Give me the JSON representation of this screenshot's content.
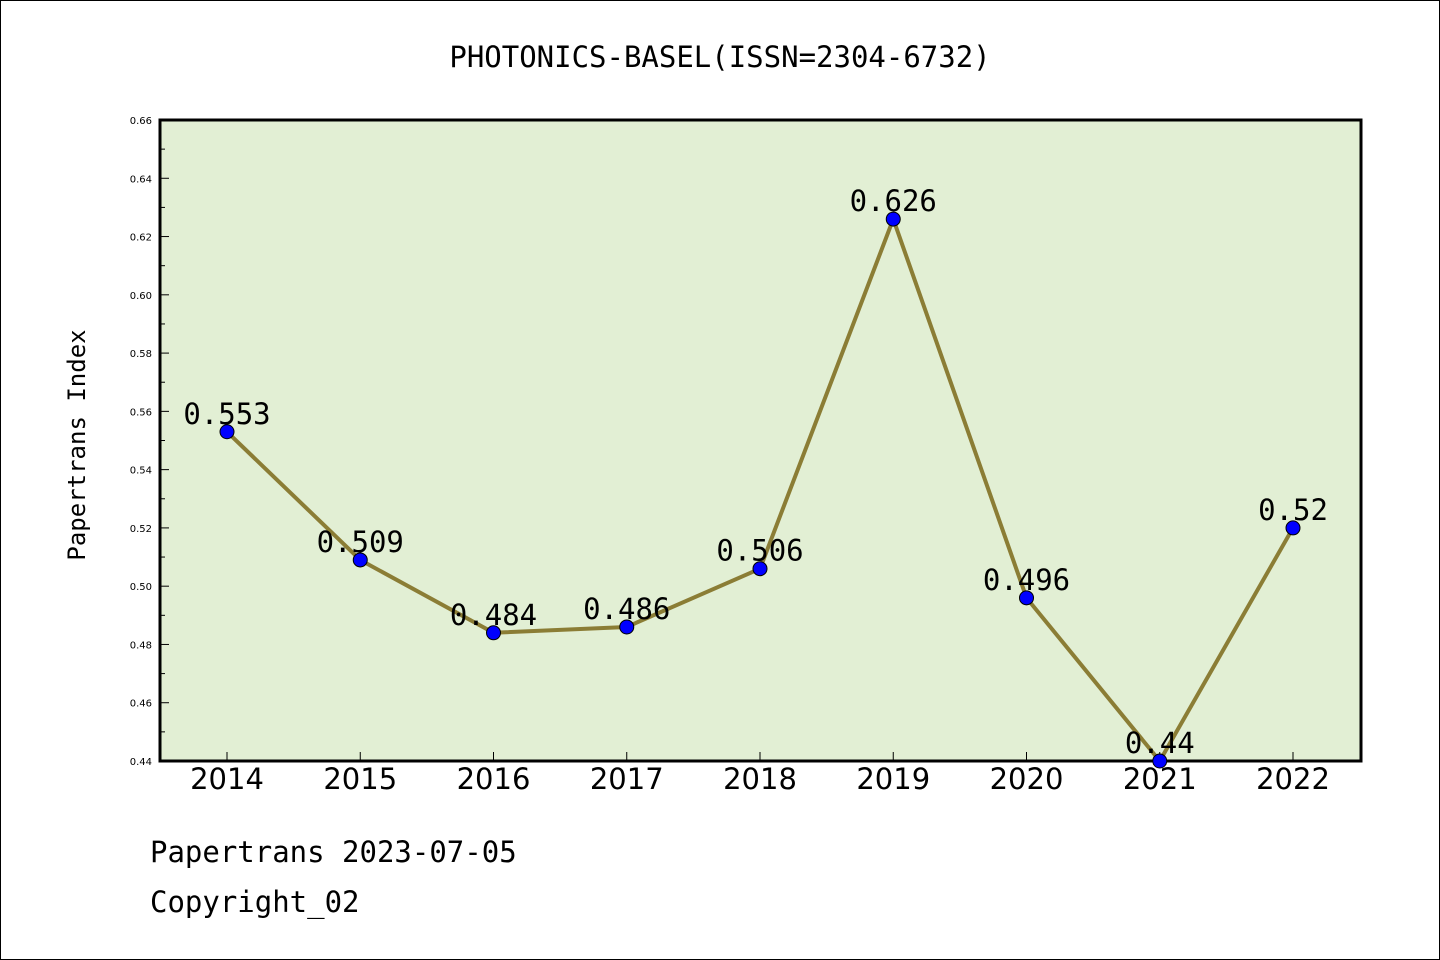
{
  "footer": {
    "date_text": "Papertrans 2023-07-05",
    "copyright_text": "Copyright_02"
  },
  "colors": {
    "plot_background": "#e2efd4",
    "line": "#8b7d35",
    "marker": "#0000ff"
  },
  "chart_data": {
    "type": "line",
    "title": "PHOTONICS-BASEL(ISSN=2304-6732)",
    "xlabel": "",
    "ylabel": "Papertrans Index",
    "categories": [
      "2014",
      "2015",
      "2016",
      "2017",
      "2018",
      "2019",
      "2020",
      "2021",
      "2022"
    ],
    "series": [
      {
        "values": [
          0.553,
          0.509,
          0.484,
          0.486,
          0.506,
          0.626,
          0.496,
          0.44,
          0.52
        ],
        "labels": [
          "0.553",
          "0.509",
          "0.484",
          "0.486",
          "0.506",
          "0.626",
          "0.496",
          "0.44",
          "0.52"
        ]
      }
    ],
    "ylim": [
      0.44,
      0.66
    ],
    "yticks": [
      0.44,
      0.46,
      0.48,
      0.5,
      0.52,
      0.54,
      0.56,
      0.58,
      0.6,
      0.62,
      0.64,
      0.66
    ],
    "ytick_labels": [
      "0.44",
      "0.46",
      "0.48",
      "0.50",
      "0.52",
      "0.54",
      "0.56",
      "0.58",
      "0.60",
      "0.62",
      "0.64",
      "0.66"
    ],
    "grid": false,
    "legend": "none"
  }
}
